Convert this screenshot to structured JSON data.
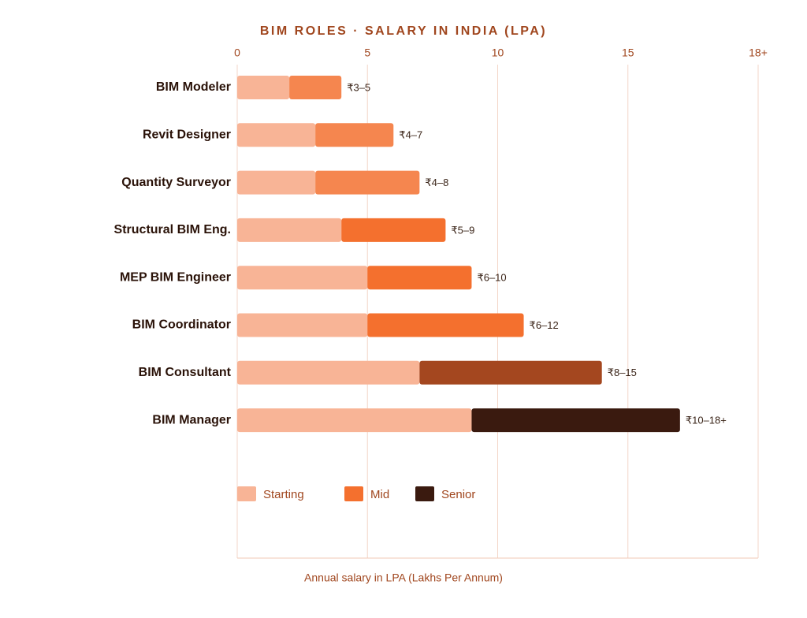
{
  "chart_data": {
    "type": "stacked-barh",
    "title": "BIM ROLES · SALARY IN INDIA (LPA)",
    "x_label": "Annual salary in LPA (Lakhs Per Annum)",
    "categories": [
      "BIM Modeler",
      "Revit Designer",
      "Quantity Surveyor",
      "Structural BIM Eng.",
      "MEP BIM Engineer",
      "BIM Coordinator",
      "BIM Consultant",
      "BIM Manager"
    ],
    "series": [
      {
        "name": "Starting",
        "color": "#f8b496",
        "values": [
          2,
          3,
          3,
          4,
          5,
          5,
          7,
          9
        ]
      },
      {
        "name": "Mid",
        "color": "#f4702e",
        "values": [
          2,
          3,
          4,
          4,
          4,
          6,
          7,
          null
        ],
        "colors": [
          "#f5864f",
          "#f5864f",
          "#f5864f",
          "#f4702e",
          "#f4702e",
          "#f4702e",
          "#a4471f",
          null
        ]
      },
      {
        "name": "Senior",
        "color": "#3a1a0f",
        "values": [
          null,
          null,
          null,
          null,
          null,
          null,
          null,
          8
        ]
      }
    ],
    "bar_labels": [
      "₹3–5",
      "₹4–7",
      "₹4–8",
      "₹5–9",
      "₹6–10",
      "₹6–12",
      "₹8–15",
      "₹10–18+"
    ],
    "xlim": [
      0,
      20
    ],
    "xticks": [
      0,
      5,
      10,
      15,
      {
        "value": 20,
        "label": "18+"
      }
    ],
    "grid": true
  }
}
